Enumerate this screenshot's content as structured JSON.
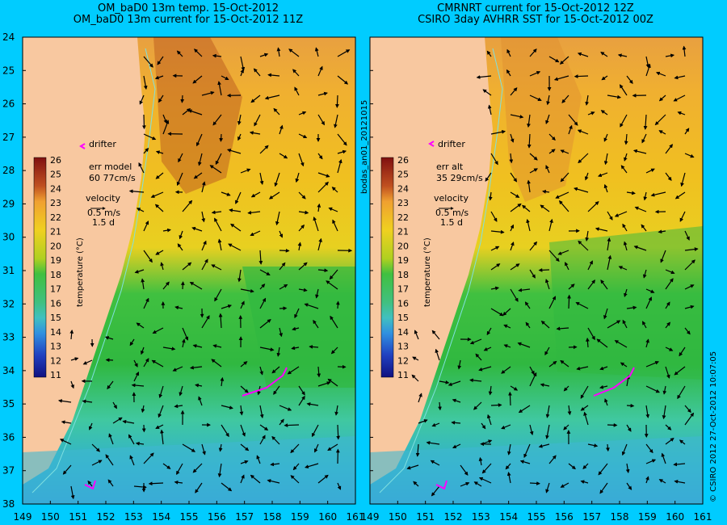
{
  "left_panel": {
    "title_line1": "OM_baD0 13m temp. 15-Oct-2012",
    "title_line2": "OM_baD0 13m current for 15-Oct-2012 11Z",
    "drifter_label": "drifter",
    "err_label": "err model",
    "err_value": "60 77cm/s",
    "velocity_label": "velocity",
    "velocity_scale": "0.5 m/s",
    "velocity_time": "1.5 d"
  },
  "right_panel": {
    "title_line1": "CMRNRT current for 15-Oct-2012 12Z",
    "title_line2": "CSIRO 3day AVHRR SST for 15-Oct-2012 00Z",
    "drifter_label": "drifter",
    "err_label": "err alt",
    "err_value": "35 29cm/s",
    "velocity_label": "velocity",
    "velocity_scale": "0.5 m/s",
    "velocity_time": "1.5 d"
  },
  "colorbar": {
    "label": "temperature (°C)",
    "ticks": [
      "26",
      "25",
      "24",
      "23",
      "22",
      "21",
      "20",
      "19",
      "18",
      "17",
      "16",
      "15",
      "14",
      "13",
      "12",
      "11"
    ]
  },
  "axes": {
    "lat_ticks": [
      "24",
      "25",
      "26",
      "27",
      "28",
      "29",
      "30",
      "31",
      "32",
      "33",
      "34",
      "35",
      "36",
      "37",
      "38"
    ],
    "lon_ticks": [
      "149",
      "150",
      "151",
      "152",
      "153",
      "154",
      "155",
      "156",
      "157",
      "158",
      "159",
      "160",
      "161"
    ]
  },
  "side_text": {
    "middle": "bodas_an01_20121015",
    "right": "© CSIRO 2012   27-Oct-2012 10:07:05"
  },
  "colors": {
    "background": "#00ccff",
    "land": "#f8c8a0",
    "drifter": "#ff00ff",
    "coastline_contour": "#80e0e0"
  }
}
